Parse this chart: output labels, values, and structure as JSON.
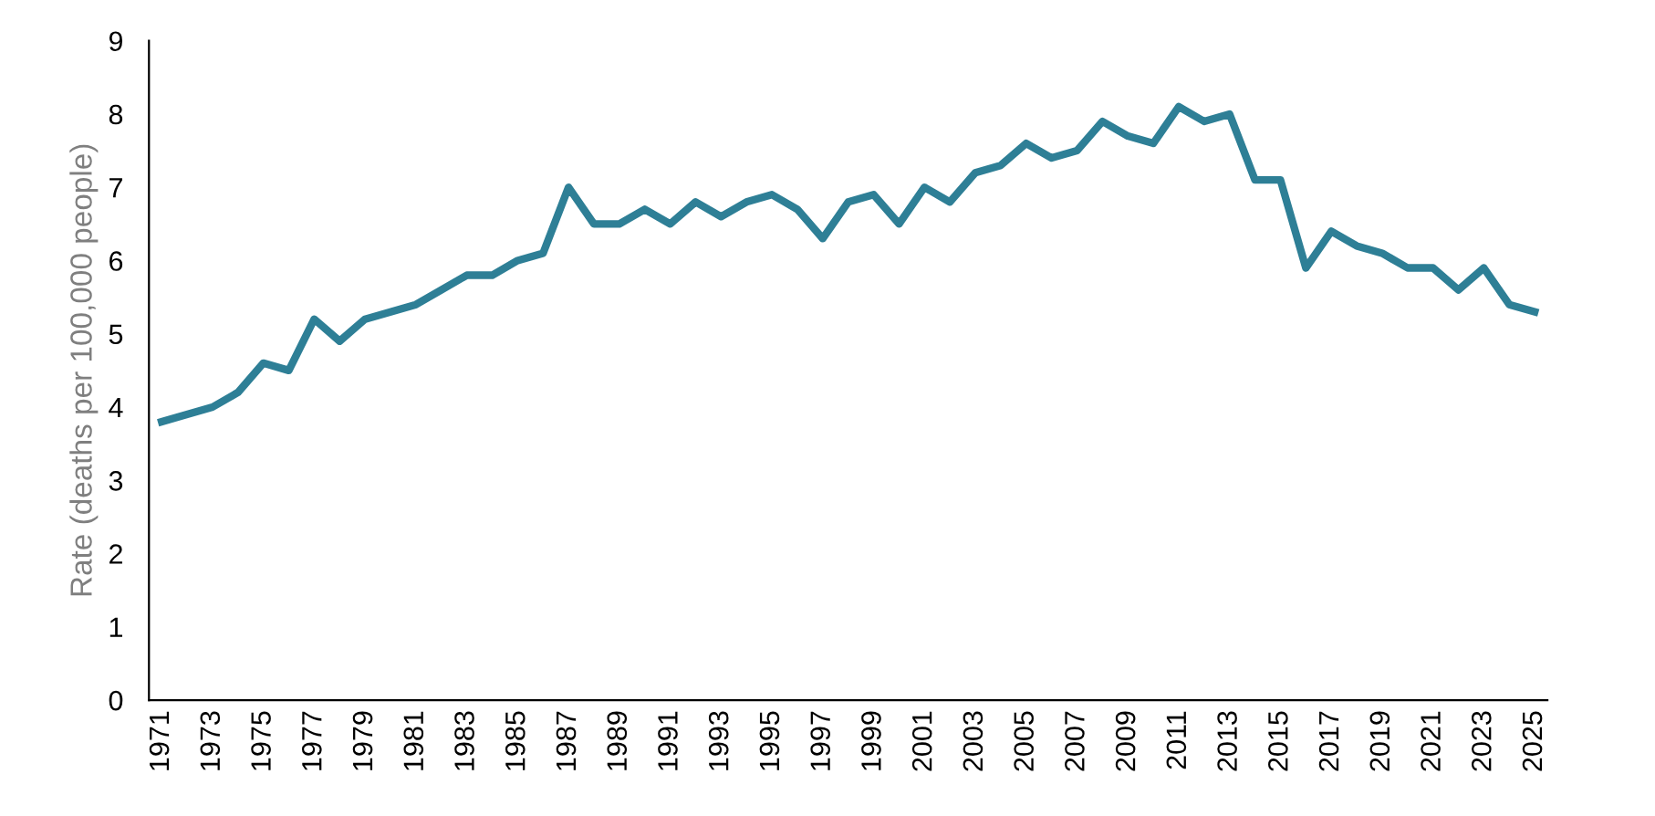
{
  "chart_data": {
    "type": "line",
    "ylabel": "Rate (deaths per 100,000 people)",
    "categories": [
      "1971",
      null,
      "1973",
      null,
      "1975",
      null,
      "1977",
      null,
      "1979",
      null,
      "1981",
      null,
      "1983",
      null,
      "1985",
      null,
      "1987",
      null,
      "1989",
      null,
      "1991",
      null,
      "1993",
      null,
      "1995",
      null,
      "1997",
      null,
      "1999",
      null,
      "2001",
      null,
      "2003",
      null,
      "2005",
      null,
      "2007",
      null,
      "2009",
      null,
      "2011",
      null,
      "2013",
      null,
      "2015",
      null,
      "2017",
      null,
      "2019",
      null,
      "2021",
      null,
      "2023",
      null,
      "2025"
    ],
    "series": [
      {
        "color": "#2e7f96",
        "values": [
          3.8,
          3.9,
          4.0,
          4.2,
          4.6,
          4.5,
          5.2,
          4.9,
          5.2,
          5.3,
          5.4,
          5.6,
          5.8,
          5.8,
          6.0,
          6.1,
          7.0,
          6.5,
          6.5,
          6.7,
          6.5,
          6.8,
          6.6,
          6.8,
          6.9,
          6.7,
          6.3,
          6.8,
          6.9,
          6.5,
          7.0,
          6.8,
          7.2,
          7.3,
          7.6,
          7.4,
          7.5,
          7.9,
          7.7,
          7.6,
          8.1,
          7.9,
          8.0,
          7.1,
          7.1,
          5.9,
          6.4,
          6.2,
          6.1,
          5.9,
          5.9,
          5.6,
          5.9,
          5.4,
          5.3
        ]
      }
    ],
    "ylim": [
      0,
      9
    ],
    "yticks": [
      0,
      1,
      2,
      3,
      4,
      5,
      6,
      7,
      8,
      9
    ],
    "marker": "none",
    "line_style": "solid"
  }
}
